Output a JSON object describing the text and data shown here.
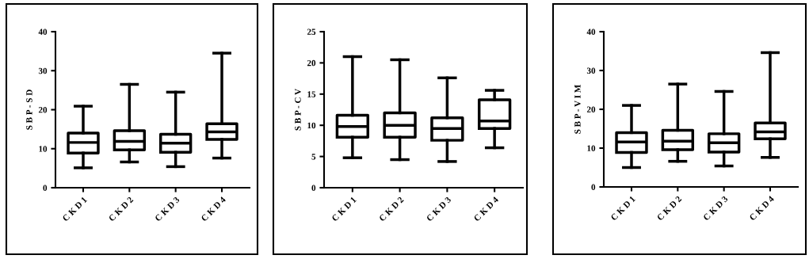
{
  "chart_data": [
    {
      "type": "box",
      "ylabel": "S B P - S D",
      "categories": [
        "C K D 1",
        "C K D 2",
        "C K D 3",
        "C K D 4"
      ],
      "ylim": [
        0,
        40
      ],
      "yticks": [
        0,
        10,
        20,
        30,
        40
      ],
      "color": "#000000",
      "boxes": [
        {
          "low": 5.1,
          "q1": 8.9,
          "median": 11.6,
          "q3": 14.0,
          "high": 20.9
        },
        {
          "low": 6.6,
          "q1": 9.7,
          "median": 11.9,
          "q3": 14.6,
          "high": 26.5
        },
        {
          "low": 5.4,
          "q1": 9.1,
          "median": 11.4,
          "q3": 13.7,
          "high": 24.5
        },
        {
          "low": 7.6,
          "q1": 12.4,
          "median": 14.3,
          "q3": 16.4,
          "high": 34.5
        }
      ]
    },
    {
      "type": "box",
      "ylabel": "S B P - C V",
      "categories": [
        "C K D 1",
        "C K D 2",
        "C K D 3",
        "C K D 4"
      ],
      "ylim": [
        0,
        25
      ],
      "yticks": [
        0,
        5,
        10,
        15,
        20,
        25
      ],
      "color": "#000000",
      "boxes": [
        {
          "low": 4.8,
          "q1": 8.1,
          "median": 9.8,
          "q3": 11.6,
          "high": 21.0
        },
        {
          "low": 4.5,
          "q1": 8.1,
          "median": 10.0,
          "q3": 12.0,
          "high": 20.5
        },
        {
          "low": 4.2,
          "q1": 7.6,
          "median": 9.5,
          "q3": 11.2,
          "high": 17.6
        },
        {
          "low": 6.4,
          "q1": 9.5,
          "median": 10.7,
          "q3": 14.1,
          "high": 15.6
        }
      ]
    },
    {
      "type": "box",
      "ylabel": "S B P - V I M",
      "categories": [
        "C K D 1",
        "C K D 2",
        "C K D 3",
        "C K D 4"
      ],
      "ylim": [
        0,
        40
      ],
      "yticks": [
        0,
        10,
        20,
        30,
        40
      ],
      "color": "#000000",
      "boxes": [
        {
          "low": 5.0,
          "q1": 8.9,
          "median": 11.6,
          "q3": 14.0,
          "high": 21.0
        },
        {
          "low": 6.6,
          "q1": 9.6,
          "median": 11.8,
          "q3": 14.6,
          "high": 26.5
        },
        {
          "low": 5.4,
          "q1": 9.0,
          "median": 11.4,
          "q3": 13.7,
          "high": 24.6
        },
        {
          "low": 7.6,
          "q1": 12.4,
          "median": 14.2,
          "q3": 16.5,
          "high": 34.6
        }
      ]
    }
  ]
}
